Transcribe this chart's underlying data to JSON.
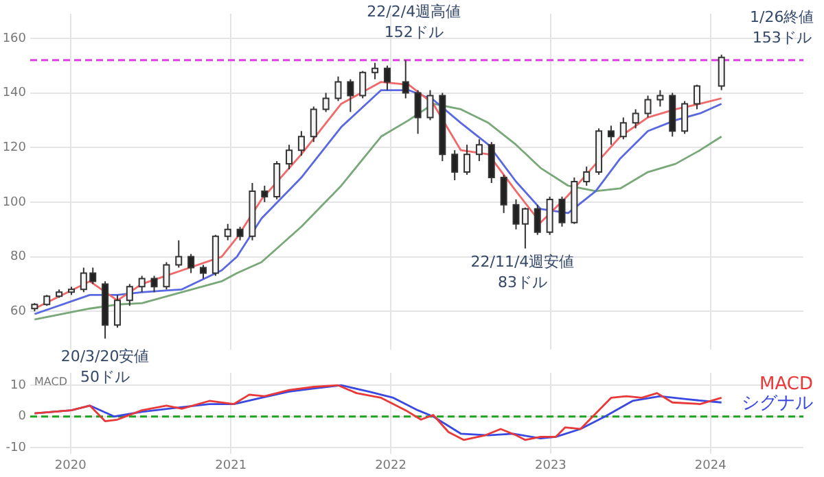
{
  "chart_data": [
    {
      "type": "candlestick",
      "x": [
        "2019-10-11",
        "2019-11-08",
        "2019-12-06",
        "2020-01-03",
        "2020-01-31",
        "2020-02-21",
        "2020-03-20",
        "2020-04-17",
        "2020-05-15",
        "2020-06-12",
        "2020-07-10",
        "2020-08-07",
        "2020-09-04",
        "2020-10-02",
        "2020-10-30",
        "2020-11-27",
        "2020-12-25",
        "2021-01-22",
        "2021-02-19",
        "2021-03-19",
        "2021-04-16",
        "2021-05-14",
        "2021-06-11",
        "2021-07-09",
        "2021-08-06",
        "2021-09-03",
        "2021-10-01",
        "2021-10-29",
        "2021-11-26",
        "2021-12-24",
        "2022-02-04",
        "2022-03-04",
        "2022-04-01",
        "2022-04-29",
        "2022-05-27",
        "2022-06-24",
        "2022-07-22",
        "2022-08-19",
        "2022-09-16",
        "2022-10-14",
        "2022-11-04",
        "2022-12-02",
        "2022-12-30",
        "2023-01-27",
        "2023-02-24",
        "2023-03-24",
        "2023-04-21",
        "2023-05-19",
        "2023-06-16",
        "2023-07-14",
        "2023-08-11",
        "2023-09-08",
        "2023-10-06",
        "2023-11-03",
        "2023-12-01",
        "2024-01-26"
      ],
      "ohlc": [
        [
          61,
          63,
          60,
          62.5
        ],
        [
          62.5,
          66,
          62,
          65.5
        ],
        [
          65.5,
          68,
          65,
          67
        ],
        [
          67,
          69,
          66,
          68
        ],
        [
          68,
          76,
          67,
          74
        ],
        [
          74,
          76,
          70,
          71
        ],
        [
          70,
          71,
          50,
          55
        ],
        [
          55,
          66,
          54,
          64
        ],
        [
          64,
          70,
          62,
          69
        ],
        [
          69,
          73,
          67,
          72
        ],
        [
          72,
          73,
          67,
          69
        ],
        [
          69,
          78,
          68,
          77
        ],
        [
          77,
          86,
          76,
          80
        ],
        [
          80,
          81,
          74,
          76
        ],
        [
          76,
          77,
          72,
          74
        ],
        [
          74,
          88,
          73,
          87.5
        ],
        [
          87.5,
          92,
          86,
          90
        ],
        [
          90,
          91,
          86,
          87.5
        ],
        [
          87.5,
          107,
          86,
          104
        ],
        [
          104,
          106,
          100,
          102
        ],
        [
          102,
          115,
          101,
          114
        ],
        [
          114,
          121,
          112,
          119
        ],
        [
          119,
          126,
          117,
          124
        ],
        [
          124,
          135,
          122,
          134
        ],
        [
          134,
          140,
          133,
          138
        ],
        [
          138,
          146,
          137,
          144
        ],
        [
          144,
          145,
          133,
          139
        ],
        [
          139,
          148,
          138,
          147.5
        ],
        [
          147.5,
          151,
          145,
          149
        ],
        [
          149,
          150,
          141,
          144
        ],
        [
          144,
          152,
          138,
          140
        ],
        [
          140,
          141,
          125,
          131
        ],
        [
          131,
          141,
          130,
          139
        ],
        [
          139,
          140,
          115,
          117.5
        ],
        [
          117.5,
          119,
          108,
          111
        ],
        [
          111,
          121,
          110,
          117.5
        ],
        [
          117.5,
          123,
          115,
          121
        ],
        [
          121,
          122,
          107,
          109
        ],
        [
          109,
          110,
          96,
          99
        ],
        [
          99,
          101,
          90,
          92
        ],
        [
          92,
          98,
          83,
          97.5
        ],
        [
          97.5,
          99,
          88,
          89
        ],
        [
          89,
          102,
          88,
          101
        ],
        [
          101,
          102,
          91,
          92.5
        ],
        [
          92.5,
          109,
          92,
          107.5
        ],
        [
          107.5,
          113,
          106,
          111
        ],
        [
          111,
          127,
          110,
          126
        ],
        [
          126,
          128,
          121,
          124
        ],
        [
          124,
          131,
          123,
          129
        ],
        [
          129,
          134,
          127,
          132.5
        ],
        [
          132.5,
          139,
          131,
          137.5
        ],
        [
          137.5,
          141,
          135,
          139
        ],
        [
          139,
          140,
          124,
          126
        ],
        [
          126,
          137,
          125,
          136
        ],
        [
          136,
          143,
          134,
          142.5
        ],
        [
          142.5,
          154,
          141,
          153
        ]
      ],
      "series": [
        {
          "type": "line",
          "color": "#f06868",
          "x": [
            "2019-10-11",
            "2020-02-14",
            "2020-04-17",
            "2020-06-12",
            "2020-09-11",
            "2020-12-11",
            "2021-01-15",
            "2021-03-12",
            "2021-06-11",
            "2021-09-10",
            "2021-12-10",
            "2022-02-11",
            "2022-04-08",
            "2022-06-10",
            "2022-08-12",
            "2022-10-14",
            "2022-12-09",
            "2023-02-10",
            "2023-04-14",
            "2023-06-09",
            "2023-08-11",
            "2023-10-13",
            "2023-12-08",
            "2024-01-26"
          ],
          "values": [
            61,
            71,
            64,
            70,
            75,
            80,
            87,
            101,
            117.5,
            136,
            144,
            143,
            136,
            119,
            117.5,
            104,
            92.5,
            102.5,
            114,
            124,
            131,
            134,
            136,
            138
          ]
        },
        {
          "type": "line",
          "color": "#5868e0",
          "x": [
            "2019-10-11",
            "2020-02-14",
            "2020-04-17",
            "2020-06-12",
            "2020-09-11",
            "2020-12-11",
            "2021-01-15",
            "2021-03-12",
            "2021-06-11",
            "2021-09-10",
            "2021-12-10",
            "2022-02-11",
            "2022-04-08",
            "2022-06-10",
            "2022-08-12",
            "2022-10-14",
            "2022-12-09",
            "2023-02-10",
            "2023-04-14",
            "2023-06-09",
            "2023-08-11",
            "2023-10-13",
            "2023-12-08",
            "2024-01-26"
          ],
          "values": [
            59,
            66,
            66,
            67,
            68,
            75,
            80,
            94,
            109,
            127.5,
            141,
            141,
            137.5,
            129,
            121,
            107.5,
            97.5,
            96,
            104,
            116,
            126,
            130,
            132.5,
            136
          ]
        },
        {
          "type": "line",
          "color": "#78a878",
          "x": [
            "2019-10-11",
            "2020-02-14",
            "2020-04-17",
            "2020-06-12",
            "2020-09-11",
            "2020-12-11",
            "2021-01-15",
            "2021-03-12",
            "2021-06-11",
            "2021-09-10",
            "2021-12-10",
            "2022-02-11",
            "2022-04-08",
            "2022-06-10",
            "2022-08-12",
            "2022-10-14",
            "2022-12-09",
            "2023-02-10",
            "2023-04-14",
            "2023-06-09",
            "2023-08-11",
            "2023-10-13",
            "2023-12-08",
            "2024-01-26"
          ],
          "values": [
            57,
            61,
            62.5,
            63,
            67,
            71,
            74,
            78,
            91,
            106,
            124,
            130,
            136,
            134,
            129,
            121,
            112.5,
            106,
            104,
            105,
            111,
            114,
            119,
            124
          ]
        }
      ],
      "xlim": [
        "2019-10-01",
        "2024-07-31"
      ],
      "xticks": [
        {
          "value": "2020-01-01",
          "label": null
        },
        {
          "value": "2021-01-01",
          "label": null
        },
        {
          "value": "2022-01-01",
          "label": null
        },
        {
          "value": "2023-01-01",
          "label": null
        },
        {
          "value": "2024-01-01",
          "label": null
        }
      ],
      "ylim": [
        46,
        169
      ],
      "yticks": [
        60,
        80,
        100,
        120,
        140,
        160
      ],
      "tick_labels": "y",
      "grid": true,
      "ref_lines": [
        {
          "axis": "y",
          "value": 152,
          "color": "#e040e0",
          "line_style": "dashed"
        }
      ],
      "annotations": [
        {
          "text": "20/3/20安値\n50ドル",
          "x": "2020-03-20",
          "y": 50
        },
        {
          "text": "22/2/4週高値\n152ドル",
          "x": "2022-02-04",
          "y": 152
        },
        {
          "text": "22/11/4週安値\n83ドル",
          "x": "2022-11-04",
          "y": 83
        },
        {
          "text": "1/26終値\n153ドル",
          "x": "2024-01-26",
          "y": 153
        }
      ]
    },
    {
      "type": "line",
      "ylabel": "MACD",
      "series": [
        {
          "name": "MACD",
          "color": "#e83838",
          "x": [
            "2019-10-11",
            "2020-01-03",
            "2020-02-14",
            "2020-03-20",
            "2020-04-17",
            "2020-06-12",
            "2020-08-07",
            "2020-09-11",
            "2020-11-13",
            "2021-01-08",
            "2021-02-12",
            "2021-03-19",
            "2021-05-14",
            "2021-07-09",
            "2021-09-03",
            "2021-10-15",
            "2021-12-10",
            "2022-02-04",
            "2022-03-11",
            "2022-04-08",
            "2022-05-13",
            "2022-06-17",
            "2022-08-05",
            "2022-09-09",
            "2022-10-14",
            "2022-11-04",
            "2022-12-09",
            "2023-01-13",
            "2023-02-03",
            "2023-03-10",
            "2023-04-14",
            "2023-05-19",
            "2023-06-23",
            "2023-07-28",
            "2023-09-01",
            "2023-10-06",
            "2023-12-08",
            "2024-01-26"
          ],
          "values": [
            1,
            2,
            3.5,
            -1.5,
            -1,
            2,
            3.5,
            2.5,
            5,
            4,
            7,
            6.5,
            8.5,
            9.5,
            10,
            7.5,
            6,
            2,
            -1,
            0.5,
            -5,
            -7.5,
            -6,
            -4,
            -6,
            -7.5,
            -6.5,
            -6.5,
            -3.5,
            -4,
            1,
            6,
            6.5,
            6,
            7.5,
            4.5,
            4,
            6
          ]
        },
        {
          "name": "シグナル",
          "color": "#3848e0",
          "x": [
            "2019-10-11",
            "2020-01-03",
            "2020-02-14",
            "2020-04-10",
            "2020-06-12",
            "2020-09-11",
            "2020-11-13",
            "2021-01-08",
            "2021-03-12",
            "2021-05-14",
            "2021-07-09",
            "2021-09-10",
            "2021-11-12",
            "2022-01-07",
            "2022-03-04",
            "2022-04-08",
            "2022-06-10",
            "2022-08-12",
            "2022-10-07",
            "2022-12-09",
            "2023-01-13",
            "2023-03-10",
            "2023-05-05",
            "2023-07-07",
            "2023-09-08",
            "2023-11-10",
            "2024-01-26"
          ],
          "values": [
            1,
            2,
            3.5,
            0,
            1.5,
            3,
            4,
            4,
            6,
            8,
            9,
            10,
            8,
            6,
            2,
            0,
            -5.5,
            -6,
            -5.5,
            -7,
            -6.5,
            -4,
            0,
            5,
            6.5,
            5.5,
            4.5
          ]
        }
      ],
      "xlim": [
        "2019-10-01",
        "2024-07-31"
      ],
      "xticks": [
        {
          "value": "2020-01-01",
          "label": "2020"
        },
        {
          "value": "2021-01-01",
          "label": "2021"
        },
        {
          "value": "2022-01-01",
          "label": "2022"
        },
        {
          "value": "2023-01-01",
          "label": "2023"
        },
        {
          "value": "2024-01-01",
          "label": "2024"
        }
      ],
      "ylim": [
        -12,
        14
      ],
      "yticks": [
        -10,
        0,
        10
      ],
      "grid": true,
      "legend": "right",
      "ref_lines": [
        {
          "axis": "y",
          "value": 0,
          "color": "#20a020",
          "line_style": "dashed"
        }
      ]
    }
  ]
}
